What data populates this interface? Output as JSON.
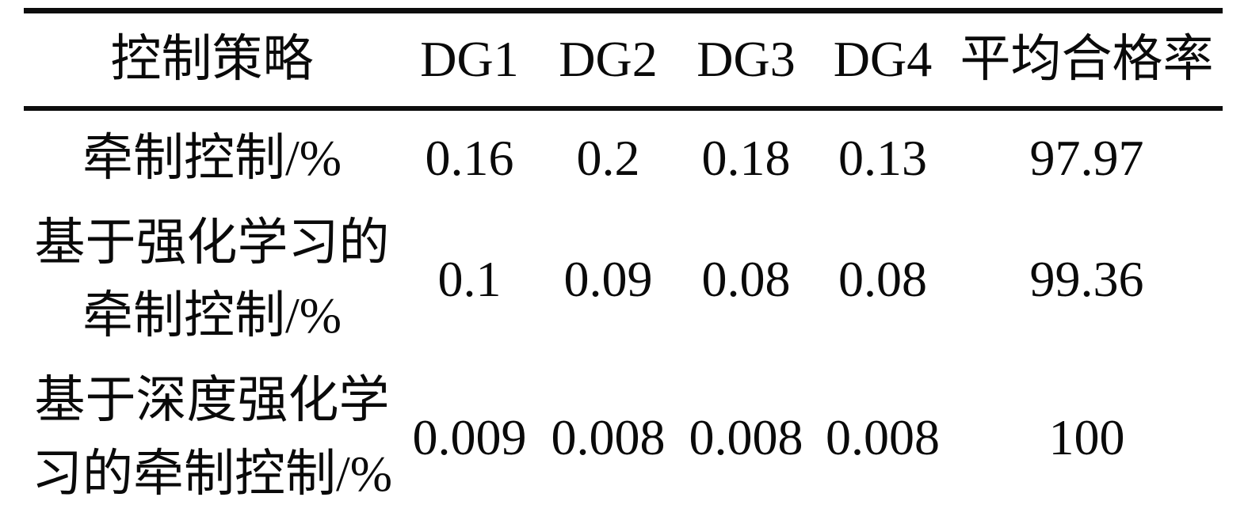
{
  "table": {
    "columns": [
      "控制策略",
      "DG1",
      "DG2",
      "DG3",
      "DG4",
      "平均合格率"
    ],
    "rows": [
      {
        "label_lines": [
          "牵制控制/%"
        ],
        "values": [
          "0.16",
          "0.2",
          "0.18",
          "0.13",
          "97.97"
        ]
      },
      {
        "label_lines": [
          "基于强化学习的",
          "牵制控制/%"
        ],
        "values": [
          "0.1",
          "0.09",
          "0.08",
          "0.08",
          "99.36"
        ]
      },
      {
        "label_lines": [
          "基于深度强化学",
          "习的牵制控制/%"
        ],
        "values": [
          "0.009",
          "0.008",
          "0.008",
          "0.008",
          "100"
        ]
      }
    ]
  },
  "chart_data": {
    "type": "table",
    "columns": [
      "控制策略",
      "DG1",
      "DG2",
      "DG3",
      "DG4",
      "平均合格率"
    ],
    "rows": [
      [
        "牵制控制/%",
        0.16,
        0.2,
        0.18,
        0.13,
        97.97
      ],
      [
        "基于强化学习的牵制控制/%",
        0.1,
        0.09,
        0.08,
        0.08,
        99.36
      ],
      [
        "基于深度强化学习的牵制控制/%",
        0.009,
        0.008,
        0.008,
        0.008,
        100
      ]
    ]
  },
  "colors": {
    "text": "#0a0a0a",
    "rule": "#0d0d0d",
    "background": "#ffffff"
  }
}
